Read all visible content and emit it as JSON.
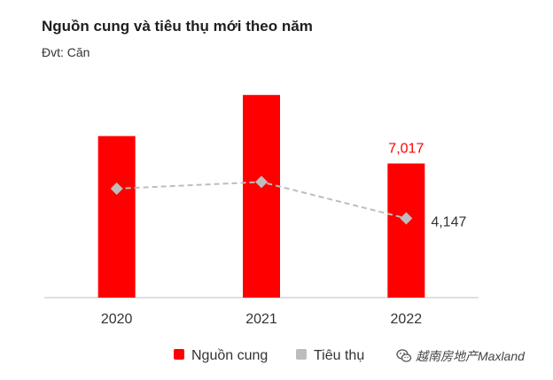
{
  "header": {
    "title": "Nguồn cung và tiêu thụ mới theo năm",
    "subtitle": "Đvt: Căn"
  },
  "watermark": {
    "text": "越南房地产Maxland",
    "icon": "wechat-icon"
  },
  "colors": {
    "supply": "#ff0000",
    "consumption": "#bdbdbd",
    "axis": "#bfbfbf",
    "label_supply": "#ff0000",
    "label_consumption": "#333333"
  },
  "chart_data": {
    "type": "bar",
    "categories": [
      "2020",
      "2021",
      "2022"
    ],
    "series": [
      {
        "name": "Nguồn cung",
        "type": "bar",
        "values": [
          8450,
          10600,
          7017
        ],
        "color": "#ff0000",
        "labels": [
          "",
          "",
          "7,017"
        ]
      },
      {
        "name": "Tiêu thụ",
        "type": "line",
        "values": [
          5700,
          6050,
          4147
        ],
        "color": "#bdbdbd",
        "line_style": "dashed",
        "marker": "diamond",
        "labels": [
          "",
          "",
          "4,147"
        ]
      }
    ],
    "ylim": [
      0,
      12000
    ],
    "legend": "bottom",
    "grid": false,
    "xlabel": "",
    "ylabel": ""
  }
}
